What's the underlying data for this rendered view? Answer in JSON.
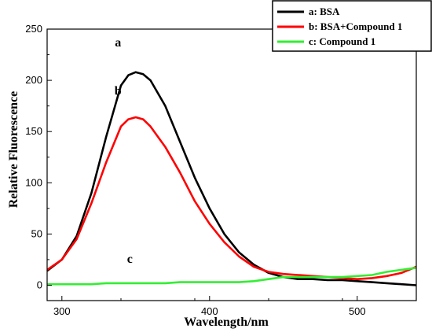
{
  "chart_data": {
    "type": "line",
    "xlabel": "Wavelength/nm",
    "ylabel": "Relative Fluorescence",
    "xlim": [
      290,
      540
    ],
    "ylim": [
      -15,
      250
    ],
    "xticks": [
      300,
      400,
      500
    ],
    "yticks": [
      0,
      50,
      100,
      150,
      200,
      250
    ],
    "legend_position": "top-right",
    "series": [
      {
        "name": "a: BSA",
        "color": "#000000",
        "x": [
          290,
          300,
          310,
          320,
          330,
          340,
          345,
          350,
          355,
          360,
          370,
          380,
          390,
          400,
          410,
          420,
          430,
          440,
          450,
          460,
          470,
          480,
          490,
          500,
          510,
          520,
          530,
          540
        ],
        "y": [
          14,
          25,
          48,
          90,
          145,
          195,
          205,
          208,
          206,
          200,
          175,
          140,
          105,
          75,
          50,
          32,
          20,
          12,
          8,
          6,
          6,
          5,
          5,
          4,
          3,
          2,
          1,
          0
        ]
      },
      {
        "name": "b: BSA+Compound 1",
        "color": "#ff0000",
        "x": [
          290,
          300,
          310,
          320,
          330,
          340,
          345,
          350,
          355,
          360,
          370,
          380,
          390,
          400,
          410,
          420,
          430,
          440,
          450,
          460,
          470,
          480,
          490,
          500,
          510,
          520,
          530,
          540
        ],
        "y": [
          15,
          25,
          45,
          80,
          120,
          155,
          162,
          164,
          162,
          155,
          135,
          110,
          82,
          60,
          42,
          28,
          18,
          13,
          11,
          10,
          9,
          8,
          7,
          6,
          7,
          9,
          12,
          18
        ]
      },
      {
        "name": "c: Compound 1",
        "color": "#33ee33",
        "x": [
          290,
          300,
          310,
          320,
          330,
          340,
          350,
          360,
          370,
          380,
          390,
          400,
          410,
          420,
          430,
          440,
          450,
          460,
          470,
          480,
          490,
          500,
          510,
          520,
          530,
          540
        ],
        "y": [
          1,
          1,
          1,
          1,
          2,
          2,
          2,
          2,
          2,
          3,
          3,
          3,
          3,
          3,
          4,
          6,
          8,
          8,
          8,
          8,
          8,
          9,
          10,
          13,
          15,
          17
        ]
      }
    ],
    "annotations": [
      {
        "text": "a",
        "x": 338,
        "y": 233
      },
      {
        "text": "b",
        "x": 338,
        "y": 186
      },
      {
        "text": "c",
        "x": 346,
        "y": 22
      }
    ]
  }
}
